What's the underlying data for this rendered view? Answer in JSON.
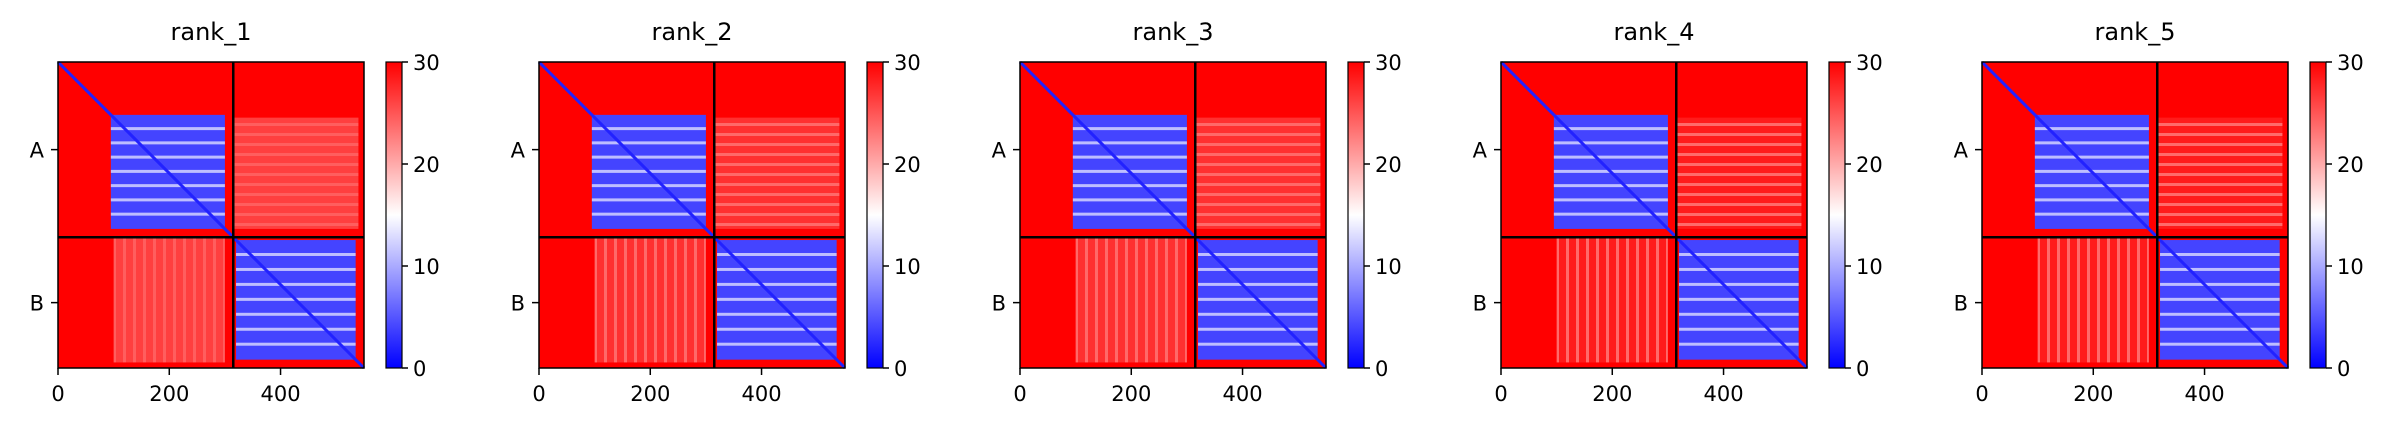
{
  "chart_data": [
    {
      "type": "heatmap",
      "title": "rank_1",
      "xlabel": "",
      "ylabel": "",
      "x_range": [
        0,
        550
      ],
      "y_tick_labels": [
        "A",
        "B"
      ],
      "x_ticks": [
        0,
        200,
        400
      ],
      "chain_boundary": 315,
      "chains": [
        {
          "name": "A",
          "start": 0,
          "end": 315
        },
        {
          "name": "B",
          "start": 315,
          "end": 550
        }
      ],
      "colorbar": {
        "min": 0,
        "max": 30,
        "ticks": [
          0,
          10,
          20,
          30
        ],
        "colormap": "bwr"
      },
      "inter_chain_level": "light",
      "interior_level": "low"
    },
    {
      "type": "heatmap",
      "title": "rank_2",
      "xlabel": "",
      "ylabel": "",
      "x_range": [
        0,
        550
      ],
      "y_tick_labels": [
        "A",
        "B"
      ],
      "x_ticks": [
        0,
        200,
        400
      ],
      "chain_boundary": 315,
      "chains": [
        {
          "name": "A",
          "start": 0,
          "end": 315
        },
        {
          "name": "B",
          "start": 315,
          "end": 550
        }
      ],
      "colorbar": {
        "min": 0,
        "max": 30,
        "ticks": [
          0,
          10,
          20,
          30
        ],
        "colormap": "bwr"
      },
      "inter_chain_level": "medium",
      "interior_level": "low"
    },
    {
      "type": "heatmap",
      "title": "rank_3",
      "xlabel": "",
      "ylabel": "",
      "x_range": [
        0,
        550
      ],
      "y_tick_labels": [
        "A",
        "B"
      ],
      "x_ticks": [
        0,
        200,
        400
      ],
      "chain_boundary": 315,
      "chains": [
        {
          "name": "A",
          "start": 0,
          "end": 315
        },
        {
          "name": "B",
          "start": 315,
          "end": 550
        }
      ],
      "colorbar": {
        "min": 0,
        "max": 30,
        "ticks": [
          0,
          10,
          20,
          30
        ],
        "colormap": "bwr"
      },
      "inter_chain_level": "medium",
      "interior_level": "low"
    },
    {
      "type": "heatmap",
      "title": "rank_4",
      "xlabel": "",
      "ylabel": "",
      "x_range": [
        0,
        550
      ],
      "y_tick_labels": [
        "A",
        "B"
      ],
      "x_ticks": [
        0,
        200,
        400
      ],
      "chain_boundary": 315,
      "chains": [
        {
          "name": "A",
          "start": 0,
          "end": 315
        },
        {
          "name": "B",
          "start": 315,
          "end": 550
        }
      ],
      "colorbar": {
        "min": 0,
        "max": 30,
        "ticks": [
          0,
          10,
          20,
          30
        ],
        "colormap": "bwr"
      },
      "inter_chain_level": "strong",
      "interior_level": "low"
    },
    {
      "type": "heatmap",
      "title": "rank_5",
      "xlabel": "",
      "ylabel": "",
      "x_range": [
        0,
        550
      ],
      "y_tick_labels": [
        "A",
        "B"
      ],
      "x_ticks": [
        0,
        200,
        400
      ],
      "chain_boundary": 315,
      "chains": [
        {
          "name": "A",
          "start": 0,
          "end": 315
        },
        {
          "name": "B",
          "start": 315,
          "end": 550
        }
      ],
      "colorbar": {
        "min": 0,
        "max": 30,
        "ticks": [
          0,
          10,
          20,
          30
        ],
        "colormap": "bwr"
      },
      "inter_chain_level": "strong",
      "interior_level": "low"
    }
  ]
}
